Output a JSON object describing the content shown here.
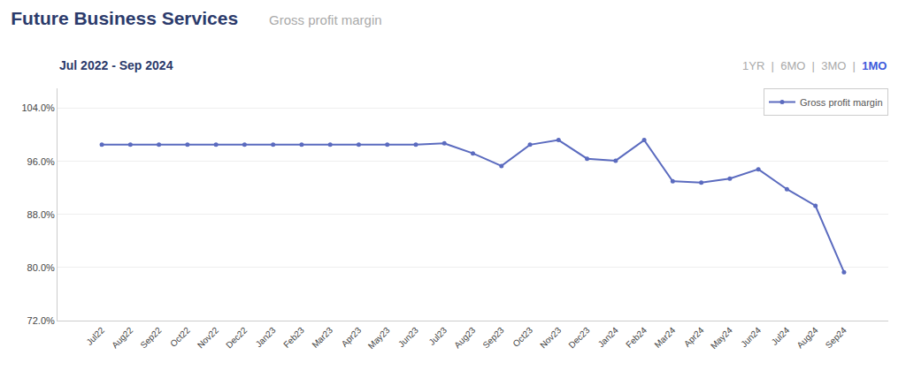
{
  "chart_data": {
    "type": "line",
    "title": "Future Business Services",
    "subtitle": "Gross profit margin",
    "annotations": [
      "Jul 2022 - Sep 2024",
      "1YR",
      "|",
      "6MO",
      "|",
      "3MO",
      "|",
      "1MO"
    ],
    "categories": [
      "Jul22",
      "Aug22",
      "Sep22",
      "Oct22",
      "Nov22",
      "Dec22",
      "Jan23",
      "Feb23",
      "Mar23",
      "Apr23",
      "May23",
      "Jun23",
      "Jul23",
      "Aug23",
      "Sep23",
      "Oct23",
      "Nov23",
      "Dec23",
      "Jan24",
      "Feb24",
      "Mar24",
      "Apr24",
      "May24",
      "Jun24",
      "Jul24",
      "Aug24",
      "Sep24"
    ],
    "series": [
      {
        "name": "Gross profit margin",
        "color": "#5b6bbf",
        "marker": "circle",
        "values": [
          98.5,
          98.5,
          98.5,
          98.5,
          98.5,
          98.5,
          98.5,
          98.5,
          98.5,
          98.5,
          98.5,
          98.5,
          98.7,
          97.2,
          95.3,
          98.5,
          99.2,
          96.4,
          96.1,
          99.2,
          93.0,
          92.8,
          93.4,
          94.8,
          91.8,
          89.3,
          79.3
        ]
      }
    ],
    "ylim": [
      72.0,
      107.0
    ],
    "yticks": [
      {
        "value": 72.0,
        "label": "72.0%"
      },
      {
        "value": 80.0,
        "label": "80.0%"
      },
      {
        "value": 88.0,
        "label": "88.0%"
      },
      {
        "value": 96.0,
        "label": "96.0%"
      },
      {
        "value": 104.0,
        "label": "104.0%"
      }
    ],
    "grid": true,
    "legend": "upper right"
  }
}
